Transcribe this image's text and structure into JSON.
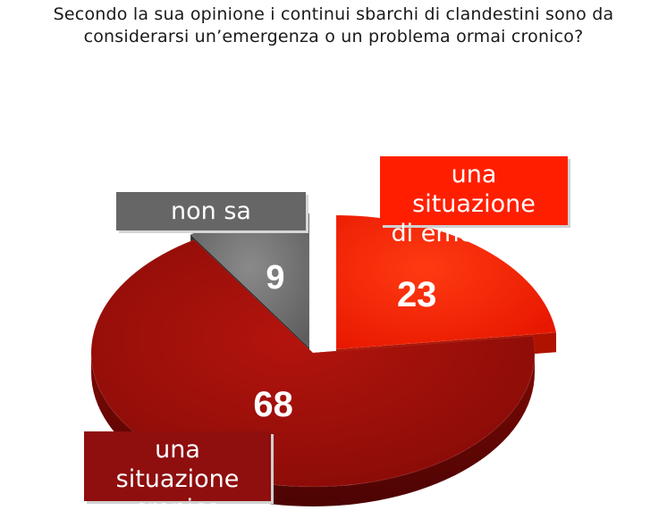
{
  "title": {
    "line1": "Secondo la sua opinione i continui sbarchi di clandestini sono da",
    "line2": "considerarsi un’emergenza o un problema ormai cronico?"
  },
  "chart_data": {
    "type": "pie",
    "style": "3d-exploded",
    "slices": [
      {
        "label_lines": [
          "una situazione",
          "di emergenza"
        ],
        "value": 23,
        "value_label": "23",
        "color": "#ff1f00",
        "side_color": "#b01200"
      },
      {
        "label_lines": [
          "una situazione",
          "cronica"
        ],
        "value": 68,
        "value_label": "68",
        "color": "#9a0f0a",
        "side_color": "#6a0605"
      },
      {
        "label_lines": [
          "non sa"
        ],
        "value": 9,
        "value_label": "9",
        "color": "#6b6b6b",
        "side_color": "#2f2f2f"
      }
    ]
  }
}
